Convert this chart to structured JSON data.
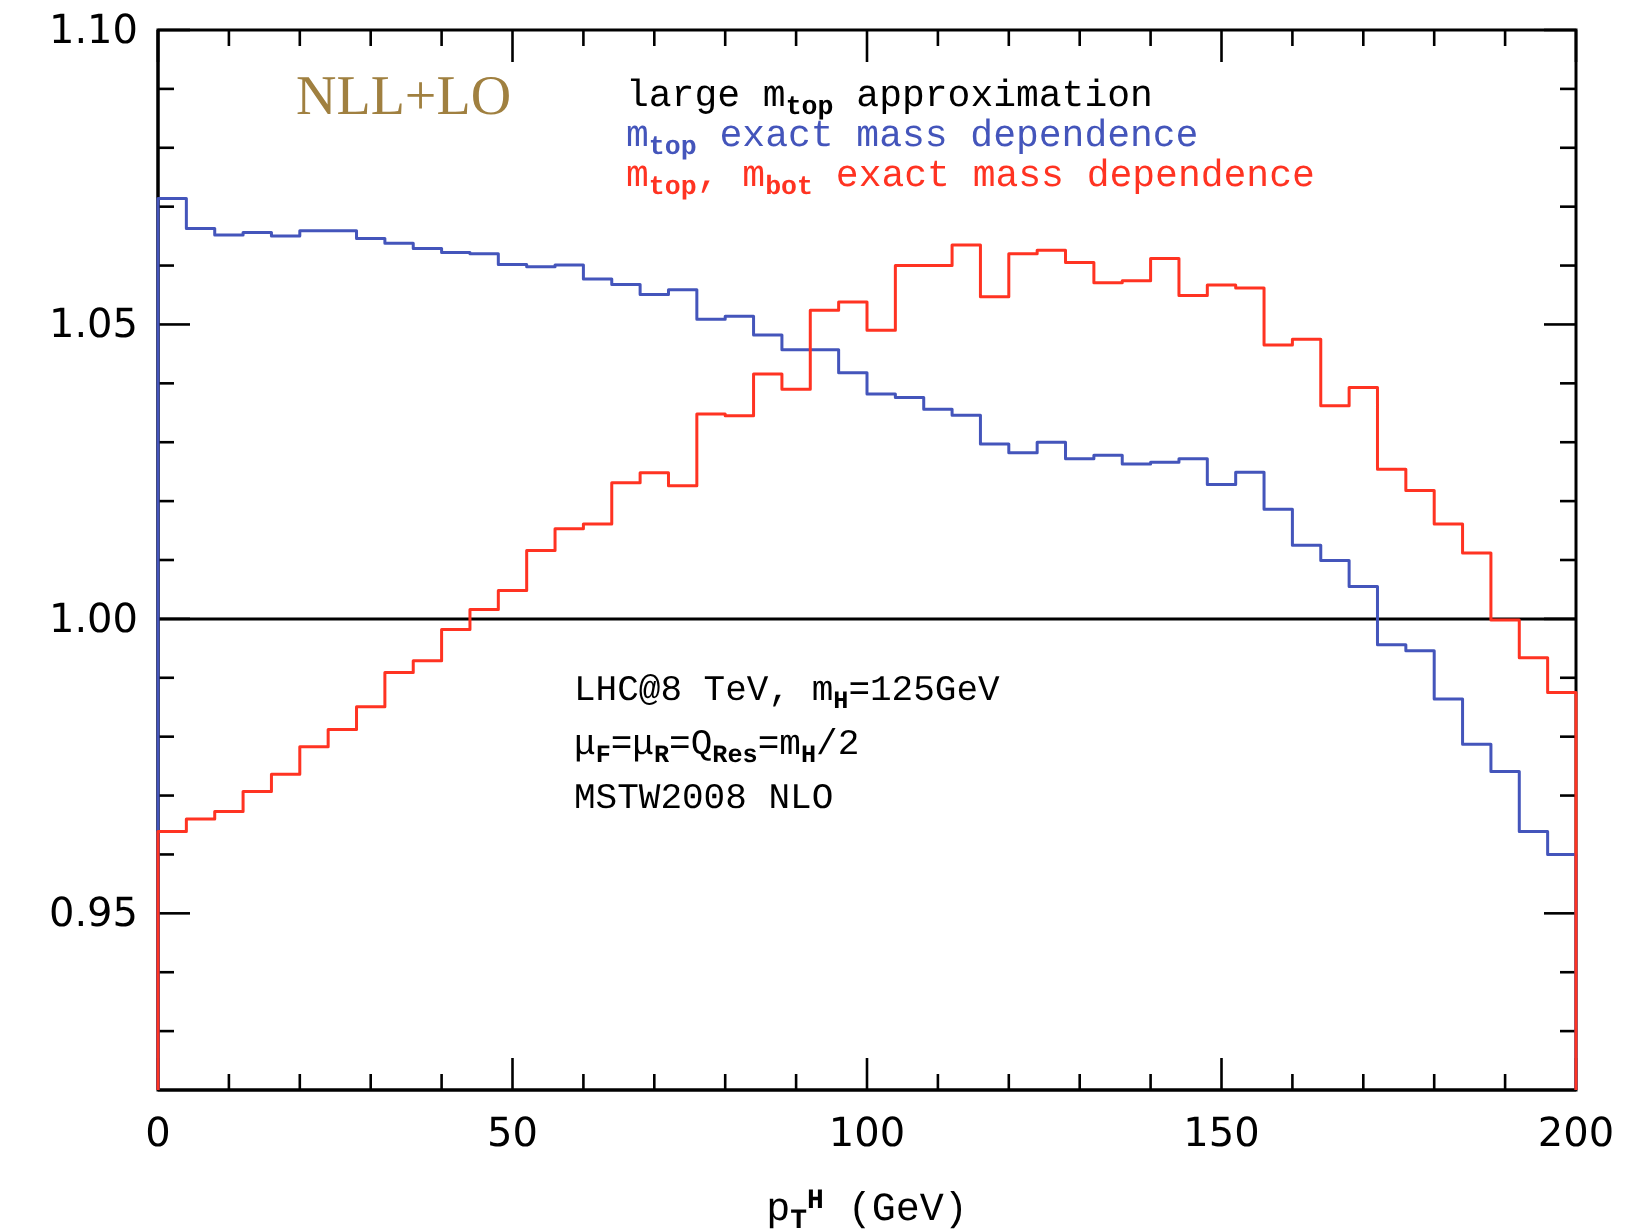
{
  "chart_data": {
    "type": "histogram",
    "xlabel": "p$_{T}$$^{H}$ (GeV)",
    "bins": [
      0,
      4,
      8,
      12,
      16,
      20,
      24,
      28,
      32,
      36,
      40,
      44,
      48,
      52,
      56,
      60,
      64,
      68,
      72,
      76,
      80,
      84,
      88,
      92,
      96,
      100,
      104,
      108,
      112,
      116,
      120,
      124,
      128,
      132,
      136,
      140,
      144,
      148,
      152,
      156,
      160,
      164,
      168,
      172,
      176,
      180,
      184,
      188,
      192,
      196,
      200
    ],
    "series": [
      {
        "name": "large m$_{top}$ approximation",
        "color": "#000000",
        "type": "line",
        "x": [
          0,
          200
        ],
        "values": [
          1,
          1
        ]
      },
      {
        "name": "m$_{top}$ exact mass dependence",
        "color": "#4455bb",
        "values": [
          1.0714,
          1.0663,
          1.0652,
          1.0656,
          1.065,
          1.0659,
          1.0659,
          1.0646,
          1.0638,
          1.0629,
          1.0622,
          1.062,
          1.0602,
          1.0598,
          1.0601,
          1.0577,
          1.0568,
          1.0551,
          1.0559,
          1.0509,
          1.0514,
          1.0482,
          1.0457,
          1.0457,
          1.0418,
          1.0382,
          1.0376,
          1.0356,
          1.0346,
          1.0297,
          1.0282,
          1.03,
          1.0272,
          1.0278,
          1.0263,
          1.0266,
          1.0272,
          1.0228,
          1.0249,
          1.0186,
          1.0125,
          1.0099,
          1.0055,
          0.9956,
          0.9946,
          0.9864,
          0.9787,
          0.9741,
          0.9639,
          0.96
        ]
      },
      {
        "name": "m$_{top}$, m$_{bot}$ exact mass dependence",
        "color": "#ff3322",
        "values": [
          0.9639,
          0.966,
          0.9673,
          0.9707,
          0.9736,
          0.9783,
          0.9812,
          0.9851,
          0.9909,
          0.9929,
          0.9982,
          1.0016,
          1.0048,
          1.0116,
          1.0153,
          1.0161,
          1.0231,
          1.0248,
          1.0226,
          1.0348,
          1.0345,
          1.0416,
          1.039,
          1.0524,
          1.0538,
          1.049,
          1.06,
          1.06,
          1.0635,
          1.0547,
          1.062,
          1.0626,
          1.0605,
          1.0571,
          1.0574,
          1.0612,
          1.0549,
          1.0567,
          1.0562,
          1.0465,
          1.0475,
          1.0362,
          1.0393,
          1.0254,
          1.0218,
          1.0161,
          1.0112,
          0.9998,
          0.9934,
          0.9875
        ]
      }
    ],
    "xlim": [
      0,
      200
    ],
    "ylim": [
      0.92,
      1.1
    ],
    "xticks": [
      0,
      {
        "value": 10,
        "label": null
      },
      {
        "value": 20,
        "label": null
      },
      {
        "value": 30,
        "label": null
      },
      {
        "value": 40,
        "label": null
      },
      50,
      {
        "value": 60,
        "label": null
      },
      {
        "value": 70,
        "label": null
      },
      {
        "value": 80,
        "label": null
      },
      {
        "value": 90,
        "label": null
      },
      100,
      {
        "value": 110,
        "label": null
      },
      {
        "value": 120,
        "label": null
      },
      {
        "value": 130,
        "label": null
      },
      {
        "value": 140,
        "label": null
      },
      150,
      {
        "value": 160,
        "label": null
      },
      {
        "value": 170,
        "label": null
      },
      {
        "value": 180,
        "label": null
      },
      {
        "value": 190,
        "label": null
      },
      200
    ],
    "yticks": [
      {
        "value": 0.93,
        "label": null
      },
      {
        "value": 0.94,
        "label": null
      },
      {
        "value": 0.95,
        "label": "0.95"
      },
      {
        "value": 0.96,
        "label": null
      },
      {
        "value": 0.97,
        "label": null
      },
      {
        "value": 0.98,
        "label": null
      },
      {
        "value": 0.99,
        "label": null
      },
      {
        "value": 1.0,
        "label": "1.00"
      },
      {
        "value": 1.01,
        "label": null
      },
      {
        "value": 1.02,
        "label": null
      },
      {
        "value": 1.03,
        "label": null
      },
      {
        "value": 1.04,
        "label": null
      },
      {
        "value": 1.05,
        "label": "1.05"
      },
      {
        "value": 1.06,
        "label": null
      },
      {
        "value": 1.07,
        "label": null
      },
      {
        "value": 1.08,
        "label": null
      },
      {
        "value": 1.09,
        "label": null
      },
      {
        "value": 1.1,
        "label": "1.10"
      }
    ],
    "legend": "top right",
    "grid": false,
    "annotations": [
      "NLL+LO",
      "LHC@8 TeV, m$_{H}$=125GeV",
      "μ$_{F}$=μ$_{R}$=Q$_{Res}$=m$_{H}$/2",
      "MSTW2008 NLO"
    ]
  }
}
